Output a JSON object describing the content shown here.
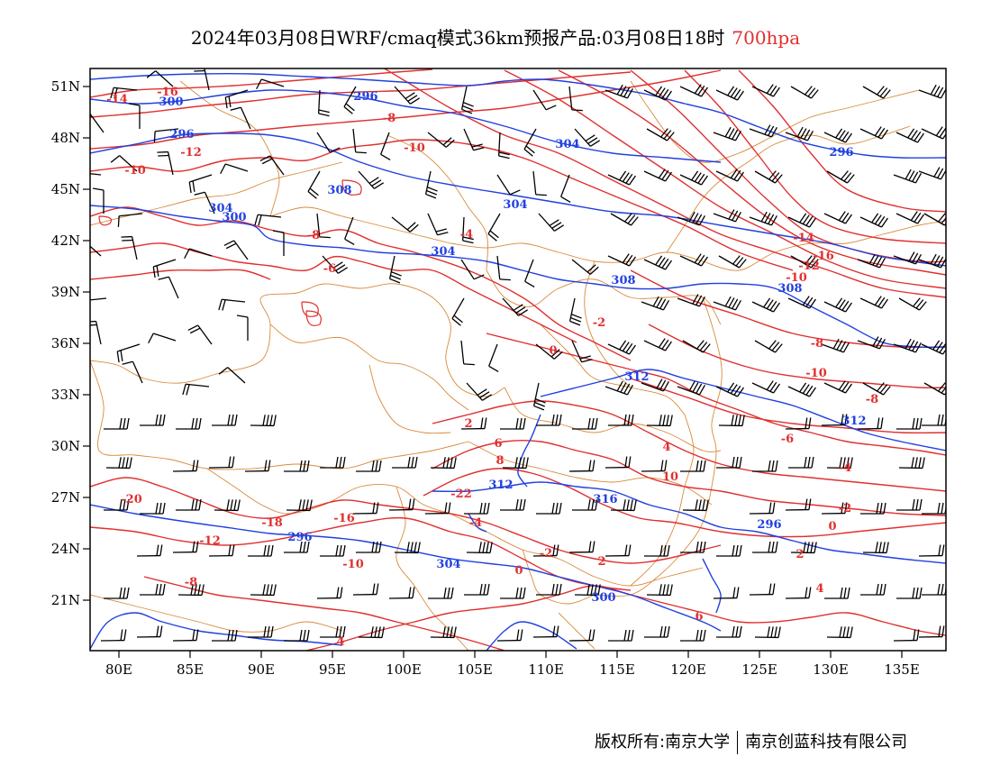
{
  "title": {
    "main": "2024年03月08日WRF/cmaq模式36km预报产品:03月08日18时",
    "level": "700hpa"
  },
  "colors": {
    "temperature": "#e03030",
    "height": "#2040e0",
    "boundary": "#d98a3a",
    "barb": "#000000"
  },
  "axes": {
    "lat_ticks": [
      "51N",
      "48N",
      "45N",
      "42N",
      "39N",
      "36N",
      "33N",
      "30N",
      "27N",
      "24N",
      "21N"
    ],
    "lon_ticks": [
      "80E",
      "85E",
      "90E",
      "95E",
      "100E",
      "105E",
      "110E",
      "115E",
      "120E",
      "125E",
      "130E",
      "135E"
    ]
  },
  "contour_labels": {
    "temperature": [
      "-14",
      "-16",
      "-12",
      "-10",
      "-8",
      "-10",
      "-8",
      "-6",
      "-4",
      "-2",
      "0",
      "2",
      "4",
      "6",
      "8",
      "10",
      "-22",
      "-20",
      "-18",
      "-16",
      "-12",
      "-10",
      "-8",
      "-4",
      "-2",
      "0",
      "2",
      "4",
      "6"
    ],
    "height": [
      "296",
      "300",
      "296",
      "304",
      "304",
      "300",
      "308",
      "304",
      "304",
      "308",
      "308",
      "312",
      "312",
      "312",
      "316",
      "296",
      "304"
    ]
  },
  "copyright": {
    "left": "版权所有:南京大学",
    "right": "南京创蓝科技有限公司"
  }
}
